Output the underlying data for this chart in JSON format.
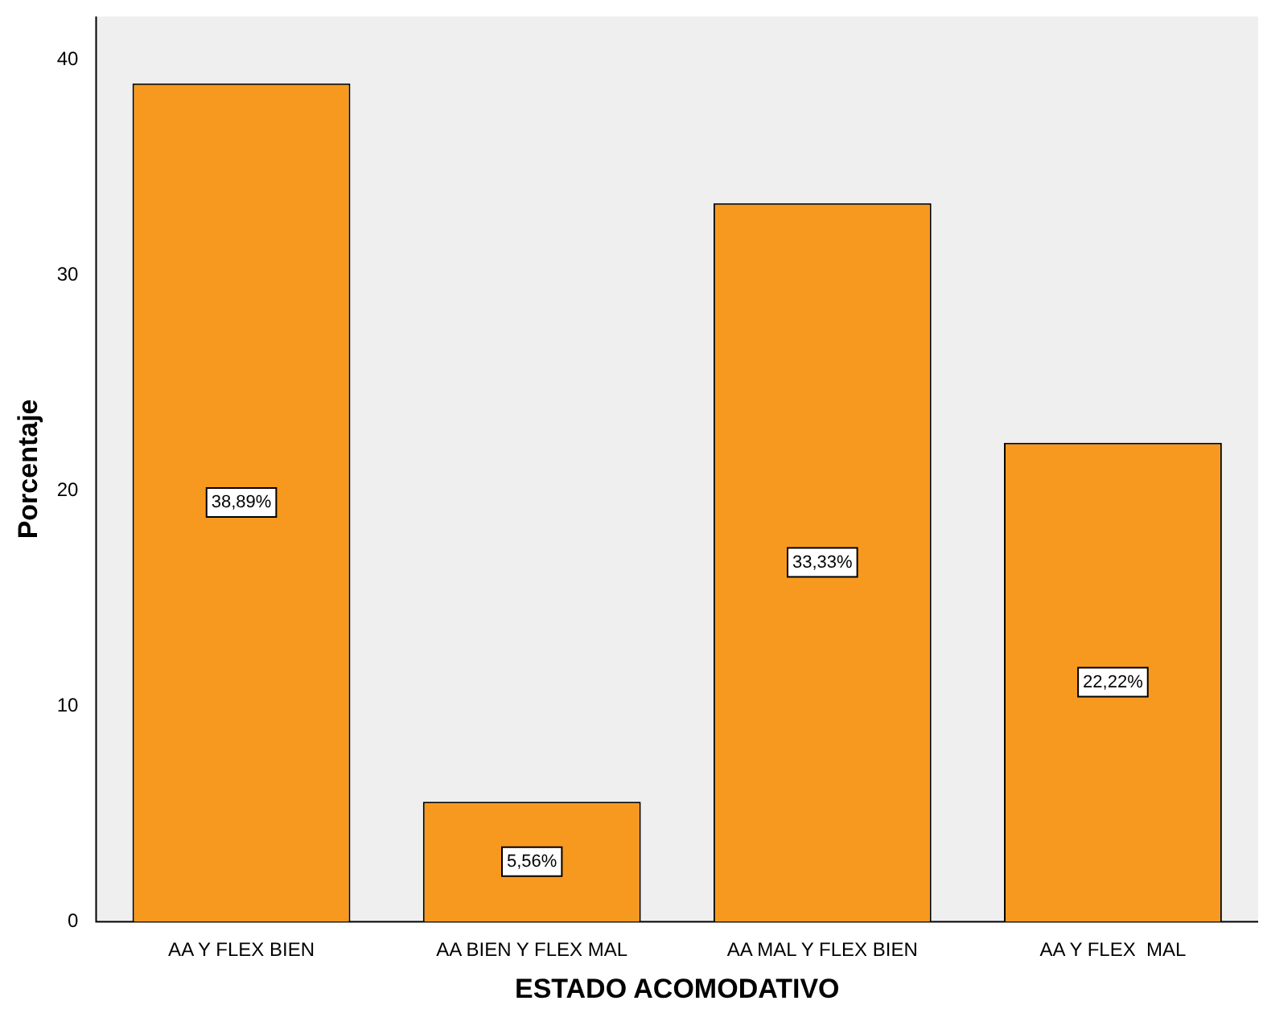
{
  "chart_data": {
    "type": "bar",
    "xlabel": "ESTADO ACOMODATIVO",
    "ylabel": "Porcentaje",
    "categories": [
      "AA Y FLEX BIEN",
      "AA BIEN Y FLEX MAL",
      "AA MAL Y FLEX BIEN",
      "AA Y FLEX  MAL"
    ],
    "values": [
      38.89,
      5.56,
      33.33,
      22.22
    ],
    "value_labels": [
      "38,89%",
      "5,56%",
      "33,33%",
      "22,22%"
    ],
    "color": "#f7991f",
    "ylim": [
      0,
      42
    ],
    "yticks": [
      0,
      10,
      20,
      30,
      40
    ],
    "grid": false,
    "legend": false
  }
}
